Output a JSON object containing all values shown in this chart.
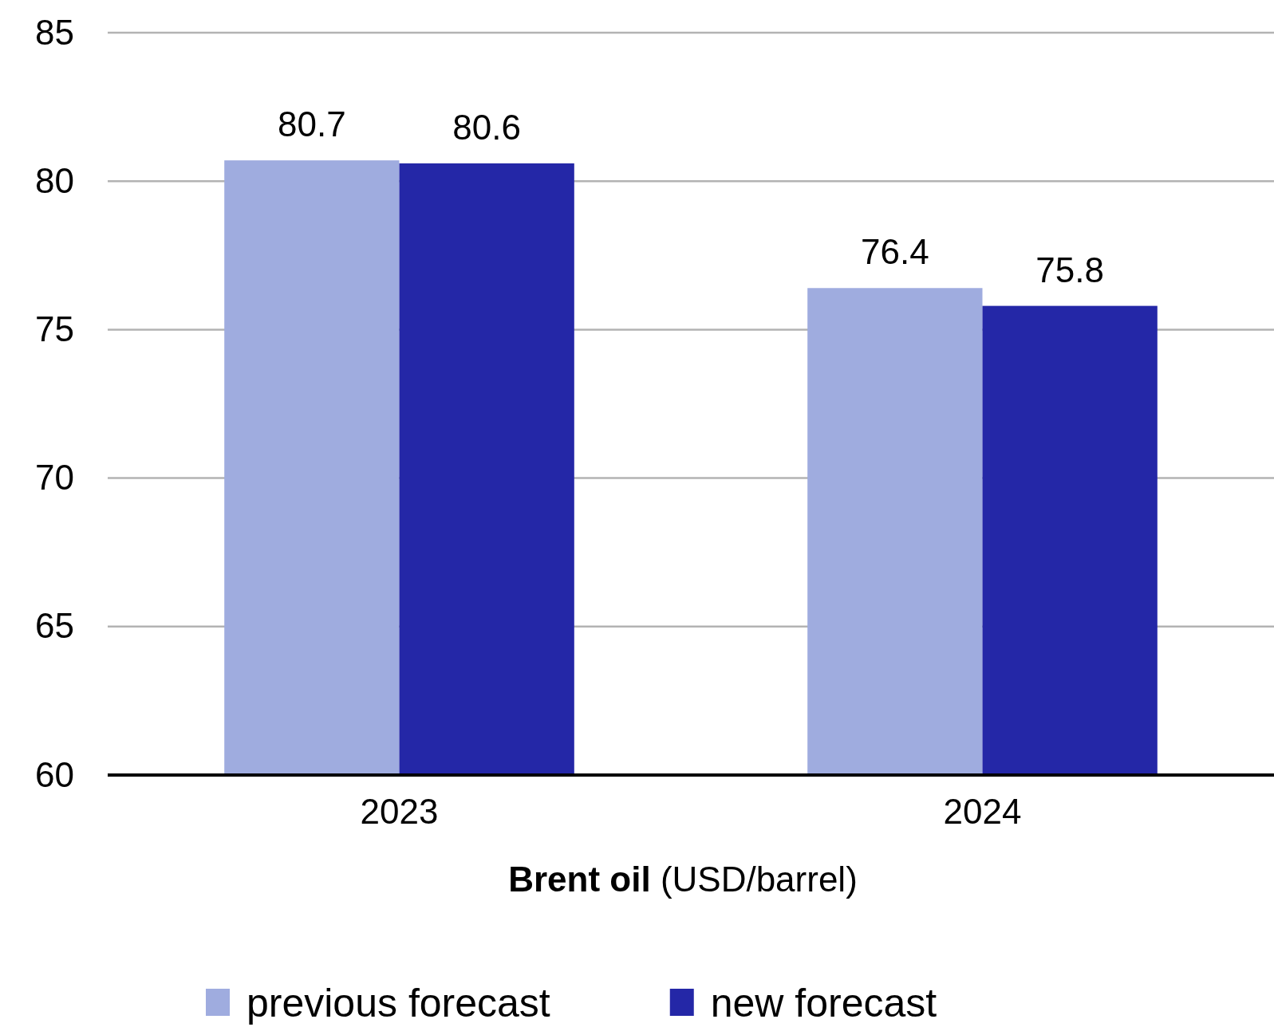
{
  "chart_data": {
    "type": "bar",
    "xlabel": "Brent oil (USD/barrel)",
    "categories": [
      "2023",
      "2024"
    ],
    "series": [
      {
        "name": "previous forecast",
        "color": "#9facdf",
        "values": [
          80.7,
          76.4
        ]
      },
      {
        "name": "new forecast",
        "color": "#2427a7",
        "values": [
          80.6,
          75.8
        ]
      }
    ],
    "ylim": [
      60,
      85
    ],
    "yticks": [
      60,
      65,
      70,
      75,
      80,
      85
    ],
    "grid": "y",
    "legend": "bottom",
    "data_labels": true
  }
}
